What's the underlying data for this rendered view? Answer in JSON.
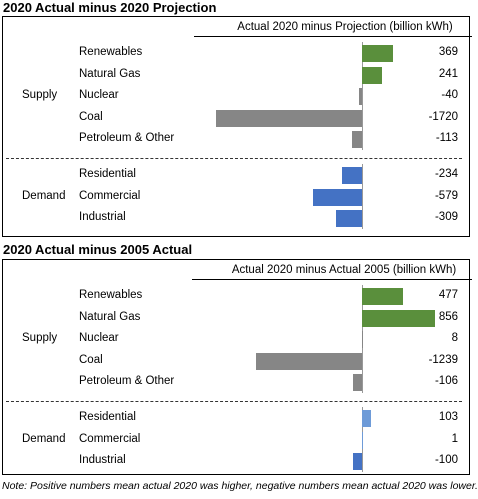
{
  "chart_data": [
    {
      "type": "bar",
      "orientation": "horizontal",
      "title": "2020 Actual minus 2020 Projection",
      "subtitle": "Actual 2020 minus Projection (billion kWh)",
      "groups": [
        {
          "name": "Supply",
          "categories": [
            "Renewables",
            "Natural Gas",
            "Nuclear",
            "Coal",
            "Petroleum & Other"
          ],
          "values": [
            369,
            241,
            -40,
            -1720,
            -113
          ]
        },
        {
          "name": "Demand",
          "categories": [
            "Residential",
            "Commercial",
            "Industrial"
          ],
          "values": [
            -234,
            -579,
            -309
          ]
        }
      ],
      "value_labels": {
        "Renewables": "369",
        "Natural Gas": "241",
        "Nuclear": "-40",
        "Coal": "-1720",
        "Petroleum & Other": "-113",
        "Residential": "-234",
        "Commercial": "-579",
        "Industrial": "-309"
      },
      "colors": {
        "renewables": "#5a8f3c",
        "fossil": "#868686",
        "demand": "#4472c4"
      },
      "xlim": [
        -1800,
        450
      ],
      "grid": false
    },
    {
      "type": "bar",
      "orientation": "horizontal",
      "title": "2020 Actual minus 2005 Actual",
      "subtitle": "Actual 2020 minus Actual 2005 (billion kWh)",
      "groups": [
        {
          "name": "Supply",
          "categories": [
            "Renewables",
            "Natural Gas",
            "Nuclear",
            "Coal",
            "Petroleum & Other"
          ],
          "values": [
            477,
            856,
            8,
            -1239,
            -106
          ]
        },
        {
          "name": "Demand",
          "categories": [
            "Residential",
            "Commercial",
            "Industrial"
          ],
          "values": [
            103,
            1,
            -100
          ]
        }
      ],
      "value_labels": {
        "Renewables": "477",
        "Natural Gas": "856",
        "Nuclear": "8",
        "Coal": "-1239",
        "Petroleum & Other": "-106",
        "Residential": "103",
        "Commercial": "1",
        "Industrial": "-100"
      },
      "colors": {
        "renewables": "#5a8f3c",
        "fossil": "#868686",
        "demand": "#4472c4"
      },
      "xlim": [
        -1300,
        900
      ],
      "grid": false
    }
  ],
  "note": "Note: Positive numbers mean actual 2020 was higher, negative numbers mean actual 2020 was lower."
}
